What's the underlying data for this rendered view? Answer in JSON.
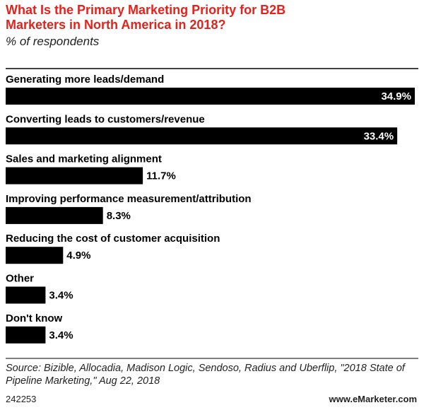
{
  "chart_data": {
    "type": "bar",
    "orientation": "horizontal",
    "title": "What Is the Primary Marketing Priority for B2B Marketers in North America in 2018?",
    "subtitle": "% of respondents",
    "categories": [
      "Generating more leads/demand",
      "Converting leads to customers/revenue",
      "Sales and marketing alignment",
      "Improving performance measurement/attribution",
      "Reducing the cost of customer acquisition",
      "Other",
      "Don't know"
    ],
    "values": [
      34.9,
      33.4,
      11.7,
      8.3,
      4.9,
      3.4,
      3.4
    ],
    "value_labels": [
      "34.9%",
      "33.4%",
      "11.7%",
      "8.3%",
      "4.9%",
      "3.4%",
      "3.4%"
    ],
    "color": "#000000",
    "title_color": "#e3231b",
    "source": "Source: Bizible, Allocadia, Madison Logic, Sendoso, Radius and Uberflip, \"2018 State of Pipeline Marketing,\" Aug 22, 2018",
    "chart_id": "242253",
    "brand": "www.eMarketer.com"
  }
}
